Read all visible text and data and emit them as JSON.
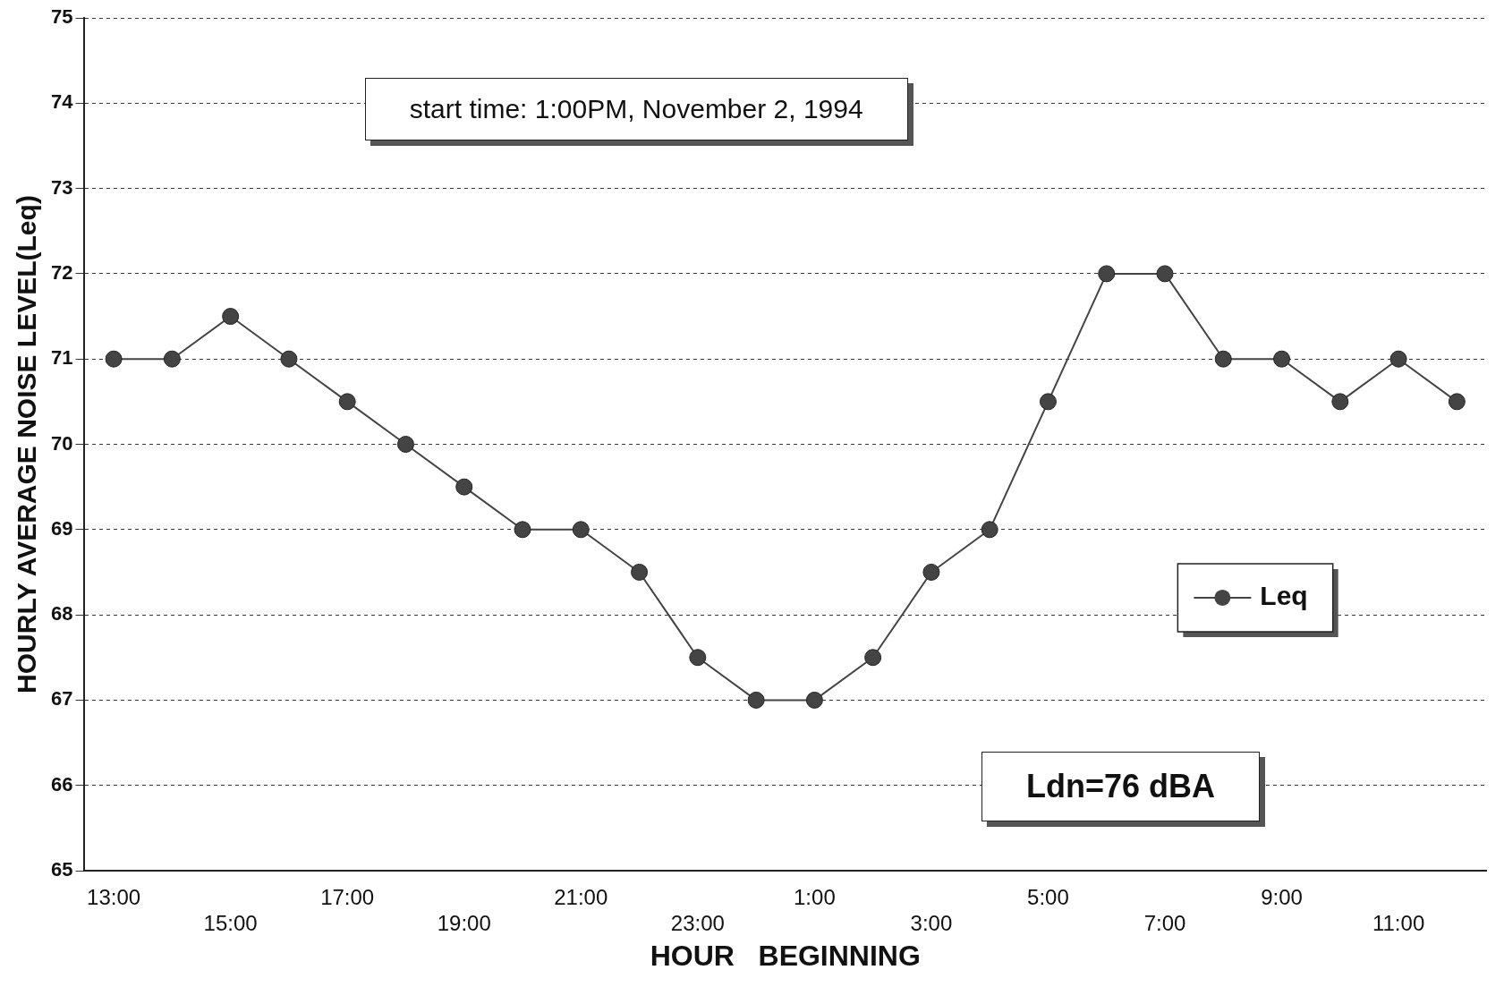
{
  "chart_data": {
    "type": "line",
    "xlabel": "HOUR   BEGINNING",
    "ylabel": "HOURLY AVERAGE NOISE LEVEL(Leq)",
    "categories": [
      "13:00",
      null,
      "15:00",
      null,
      "17:00",
      null,
      "19:00",
      null,
      "21:00",
      null,
      "23:00",
      null,
      "1:00",
      null,
      "3:00",
      null,
      "5:00",
      null,
      "7:00",
      null,
      "9:00",
      null,
      "11:00",
      null
    ],
    "series": [
      {
        "name": "Leq",
        "color": "#444444",
        "values": [
          71,
          71,
          71.5,
          71,
          70.5,
          70,
          69.5,
          69,
          69,
          68.5,
          67.5,
          67,
          67,
          67.5,
          68.5,
          69,
          70.5,
          72,
          72,
          71,
          71,
          70.5,
          71,
          70.5
        ]
      }
    ],
    "ylim": [
      65,
      75
    ],
    "yticks": [
      65,
      66,
      67,
      68,
      69,
      70,
      71,
      72,
      73,
      74,
      75
    ],
    "grid": "y",
    "legend": "right",
    "marker": "circle",
    "line_style": "solid",
    "annotations": [
      "start time: 1:00PM, November 2, 1994",
      "Ldn=76 dBA"
    ]
  }
}
